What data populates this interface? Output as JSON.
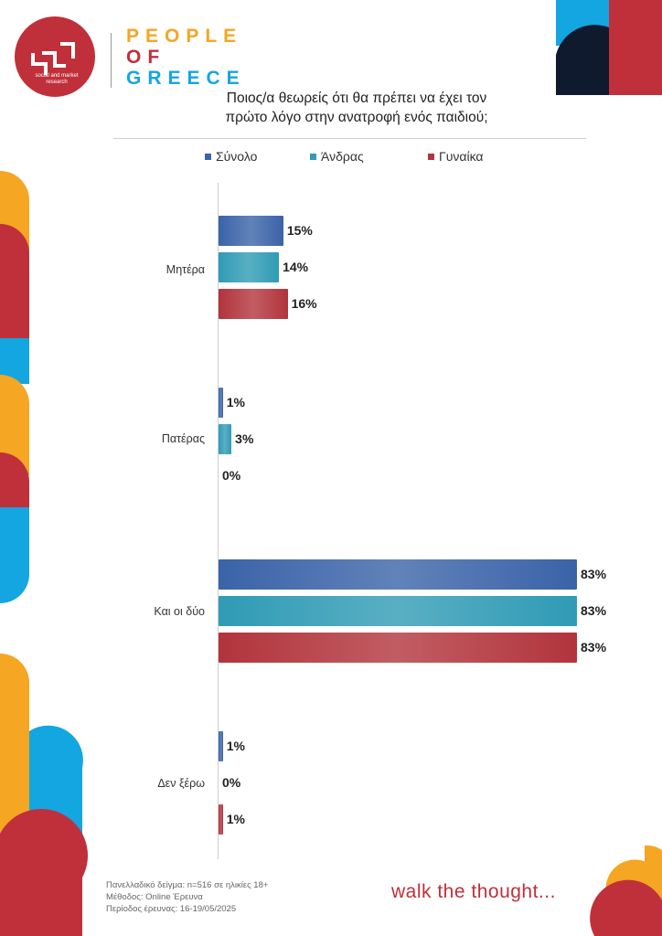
{
  "brand": {
    "logo_subtitle": "social and market research",
    "lines": [
      "PEOPLE",
      "OF",
      "GREECE"
    ],
    "tagline": "walk the thought..."
  },
  "title_line1": "Ποιος/α θεωρείς ότι θα πρέπει να έχει τον",
  "title_line2": "πρώτο λόγο στην ανατροφή ενός παιδιού;",
  "colors": {
    "total": "#3a63a8",
    "men": "#2f9bb5",
    "women": "#b2343c",
    "accent_orange": "#f5a623",
    "accent_blue": "#14a6e0",
    "accent_red": "#c0303a",
    "accent_navy": "#0f1a2e"
  },
  "chart_data": {
    "type": "bar",
    "orientation": "horizontal",
    "categories": [
      "Μητέρα",
      "Πατέρας",
      "Και οι δύο",
      "Δεν ξέρω"
    ],
    "series": [
      {
        "name": "Σύνολο",
        "values": [
          15,
          1,
          83,
          1
        ]
      },
      {
        "name": "Άνδρας",
        "values": [
          14,
          3,
          83,
          0
        ]
      },
      {
        "name": "Γυναίκα",
        "values": [
          16,
          0,
          83,
          1
        ]
      }
    ],
    "value_suffix": "%",
    "xlim": [
      0,
      100
    ],
    "legend": "top",
    "grid": false
  },
  "footer": {
    "line1": "Πανελλαδικό δείγμα: n=516 σε ηλικίες 18+",
    "line2": "Μέθοδος: Online Έρευνα",
    "line3": "Περίοδος έρευνας: 16-19/05/2025"
  }
}
